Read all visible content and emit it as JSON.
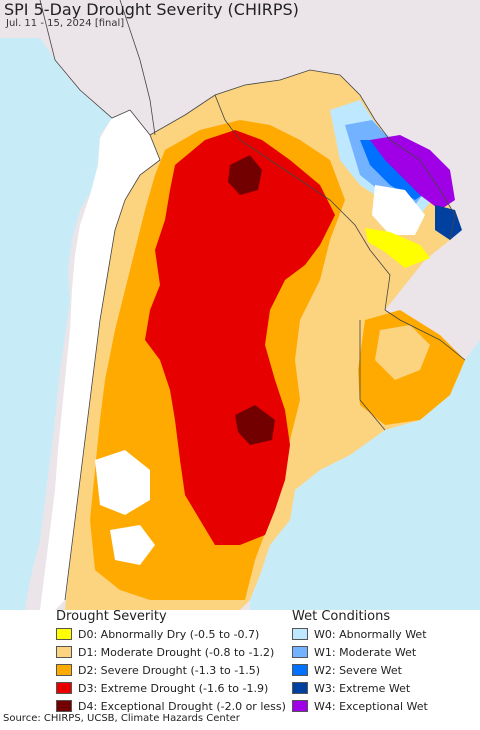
{
  "header": {
    "title": "SPI 5-Day Drought Severity (CHIRPS)",
    "subtitle": "Jul. 11 - 15, 2024 [final]"
  },
  "legend": {
    "drought_heading": "Drought Severity",
    "wet_heading": "Wet Conditions",
    "drought": [
      {
        "label": "D0: Abnormally Dry (-0.5 to -0.7)",
        "color": "#ffff00"
      },
      {
        "label": "D1: Moderate Drought (-0.8 to -1.2)",
        "color": "#fcd37f"
      },
      {
        "label": "D2: Severe Drought (-1.3 to -1.5)",
        "color": "#ffaa00"
      },
      {
        "label": "D3: Extreme Drought (-1.6 to -1.9)",
        "color": "#e60000"
      },
      {
        "label": "D4: Exceptional Drought (-2.0 or less)",
        "color": "#730000"
      }
    ],
    "wet": [
      {
        "label": "W0: Abnormally Wet",
        "color": "#bee8ff"
      },
      {
        "label": "W1: Moderate Wet",
        "color": "#73b2ff"
      },
      {
        "label": "W2: Severe Wet",
        "color": "#0070ff"
      },
      {
        "label": "W3: Extreme Wet",
        "color": "#0040a0"
      },
      {
        "label": "W4: Exceptional Wet",
        "color": "#a000e6"
      }
    ]
  },
  "footer": {
    "source": "Source: CHIRPS, UCSB, Climate Hazards Center"
  },
  "colors": {
    "ocean": "#c8ecf7",
    "outside_region": "#ebe4e9",
    "no_data": "#ffffff"
  }
}
